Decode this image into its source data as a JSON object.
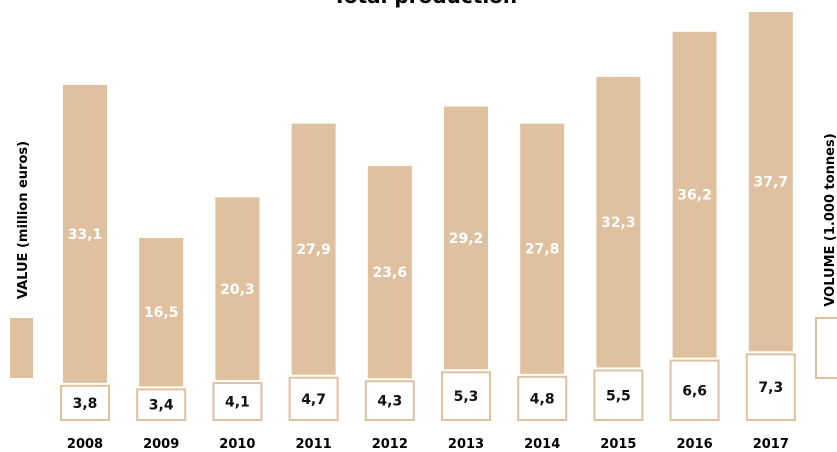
{
  "chart_data": {
    "type": "bar",
    "title": "Total production",
    "categories": [
      "2008",
      "2009",
      "2010",
      "2011",
      "2012",
      "2013",
      "2014",
      "2015",
      "2016",
      "2017"
    ],
    "series": [
      {
        "name": "VALUE (million euros)",
        "color": "#dfc19f",
        "values": [
          33.1,
          16.5,
          20.3,
          27.9,
          23.6,
          29.2,
          27.8,
          32.3,
          36.2,
          37.7
        ],
        "value_labels": [
          "33,1",
          "16,5",
          "20,3",
          "27,9",
          "23,6",
          "29,2",
          "27,8",
          "32,3",
          "36,2",
          "37,7"
        ]
      },
      {
        "name": "VOLUME (1.000 tonnes)",
        "color": "#ffffff",
        "edge_color": "#dfc19f",
        "values": [
          3.8,
          3.4,
          4.1,
          4.7,
          4.3,
          5.3,
          4.8,
          5.5,
          6.6,
          7.3
        ],
        "value_labels": [
          "3,8",
          "3,4",
          "4,1",
          "4,7",
          "4,3",
          "5,3",
          "4,8",
          "5,5",
          "6,6",
          "7,3"
        ]
      }
    ]
  }
}
